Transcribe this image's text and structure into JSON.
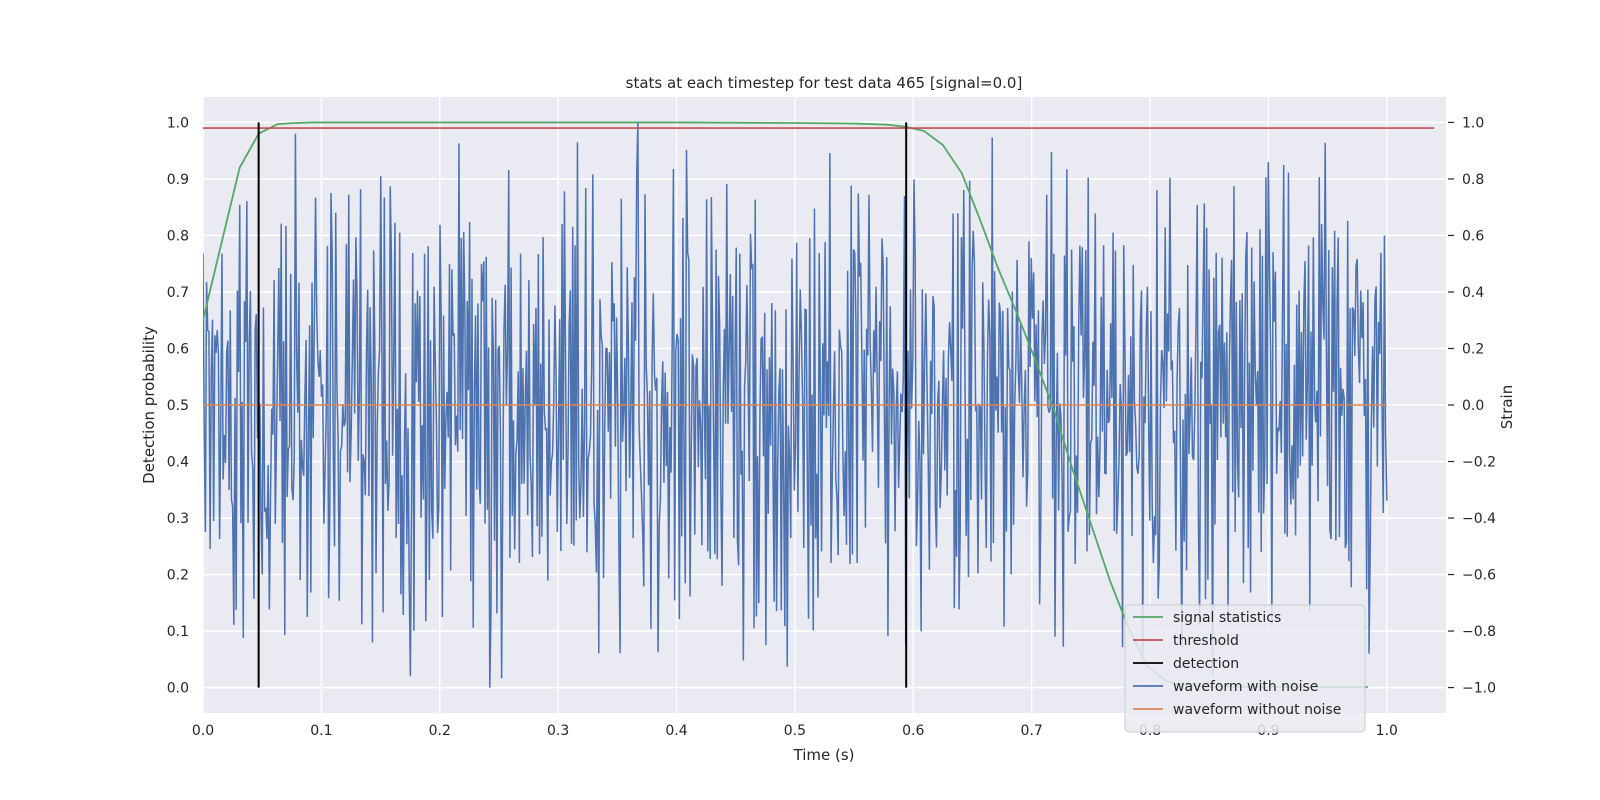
{
  "chart_data": {
    "type": "line",
    "title": "stats at each timestep for test data 465 [signal=0.0]",
    "xlabel": "Time (s)",
    "ylabel": "Detection probability",
    "y2label": "Strain",
    "xlim": [
      0.0,
      1.05
    ],
    "ylim": [
      -0.045,
      1.045
    ],
    "y2lim": [
      -1.09,
      1.09
    ],
    "xticks": [
      "0.0",
      "0.1",
      "0.2",
      "0.3",
      "0.4",
      "0.5",
      "0.6",
      "0.7",
      "0.8",
      "0.9",
      "1.0"
    ],
    "yticks": [
      "0.0",
      "0.1",
      "0.2",
      "0.3",
      "0.4",
      "0.5",
      "0.6",
      "0.7",
      "0.8",
      "0.9",
      "1.0"
    ],
    "y2ticks": [
      "−1.0",
      "−0.8",
      "−0.6",
      "−0.4",
      "−0.2",
      "0.0",
      "0.2",
      "0.4",
      "0.6",
      "0.8",
      "1.0"
    ],
    "grid": true,
    "legend_position": "lower-right",
    "legend": [
      {
        "label": "signal statistics",
        "color": "#55a868"
      },
      {
        "label": "threshold",
        "color": "#c44e52"
      },
      {
        "label": "detection",
        "color": "#000000"
      },
      {
        "label": "waveform with noise",
        "color": "#4c72b0"
      },
      {
        "label": "waveform without noise",
        "color": "#dd8452"
      }
    ],
    "signal_statistics": {
      "x": [
        0.0,
        0.016,
        0.031,
        0.047,
        0.063,
        0.078,
        0.094,
        0.2,
        0.3,
        0.4,
        0.5,
        0.55,
        0.578,
        0.594,
        0.609,
        0.625,
        0.641,
        0.656,
        0.672,
        0.688,
        0.703,
        0.719,
        0.734,
        0.75,
        0.766,
        0.781,
        0.797,
        0.813,
        0.828,
        0.844,
        0.9,
        0.95,
        0.984
      ],
      "y": [
        0.65,
        0.79,
        0.92,
        0.98,
        0.997,
        0.999,
        1.0,
        1.0,
        1.0,
        1.0,
        0.999,
        0.998,
        0.996,
        0.992,
        0.985,
        0.96,
        0.91,
        0.83,
        0.74,
        0.66,
        0.58,
        0.49,
        0.39,
        0.29,
        0.19,
        0.11,
        0.04,
        0.012,
        0.005,
        0.002,
        0.001,
        0.001,
        0.001
      ]
    },
    "threshold": {
      "value": 0.99,
      "x": [
        0.0,
        1.04
      ]
    },
    "detections": [
      {
        "x": 0.047,
        "y": [
          0.0,
          1.0
        ]
      },
      {
        "x": 0.594,
        "y": [
          0.0,
          1.0
        ]
      }
    ],
    "waveform_without_noise": {
      "value": 0.0,
      "x": [
        0.0,
        1.0
      ]
    },
    "waveform_with_noise": {
      "x_range": [
        0.0,
        1.0
      ],
      "n_points": 1000,
      "y_range": [
        -1.0,
        1.0
      ],
      "samples": [
        0.45,
        0.05,
        -0.75,
        0.32,
        -0.2,
        0.5,
        -0.7,
        -0.3,
        0.6,
        -0.05,
        0.3,
        -0.4,
        0.55,
        -0.15,
        0.12,
        -0.55,
        0.68,
        -0.33,
        0.2,
        -0.82,
        0.42,
        0.02,
        -0.27,
        0.5,
        -0.1,
        0.35,
        -0.6,
        0.18,
        -0.45,
        0.62,
        -0.08,
        0.28,
        -0.35,
        0.47,
        -0.72,
        0.1,
        -0.2,
        0.4,
        -0.5,
        0.25,
        0.05,
        -0.38,
        0.55,
        -0.65,
        0.15,
        0.33,
        -0.25,
        0.7,
        -0.48,
        -0.02
      ],
      "extremes": [
        {
          "x": 0.242,
          "y": -1.0
        },
        {
          "x": 0.175,
          "y": -0.96
        },
        {
          "x": 0.367,
          "y": 1.0
        },
        {
          "x": 0.078,
          "y": 0.96
        },
        {
          "x": 0.9,
          "y": 0.86
        },
        {
          "x": 0.05,
          "y": -0.6
        },
        {
          "x": 0.475,
          "y": -0.85
        },
        {
          "x": 0.72,
          "y": -0.82
        },
        {
          "x": 0.985,
          "y": -0.88
        },
        {
          "x": 0.998,
          "y": 0.6
        }
      ]
    }
  }
}
